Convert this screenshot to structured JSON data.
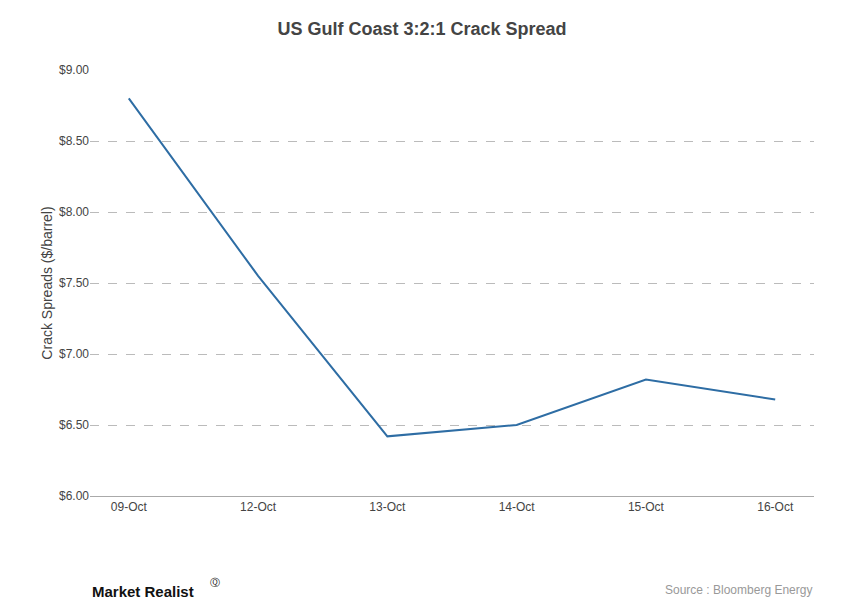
{
  "chart_data": {
    "type": "line",
    "title": "US Gulf Coast 3:2:1 Crack Spread",
    "ylabel": "Crack Spreads ($/barrel)",
    "categories": [
      "09-Oct",
      "12-Oct",
      "13-Oct",
      "14-Oct",
      "15-Oct",
      "16-Oct"
    ],
    "values": [
      8.8,
      7.55,
      6.42,
      6.5,
      6.82,
      6.68
    ],
    "color": "#2E6DA4",
    "ylim": [
      6.0,
      9.0
    ],
    "yticks": [
      {
        "value": 6.0,
        "label": "$6.00"
      },
      {
        "value": 6.5,
        "label": "$6.50"
      },
      {
        "value": 7.0,
        "label": "$7.00"
      },
      {
        "value": 7.5,
        "label": "$7.50"
      },
      {
        "value": 8.0,
        "label": "$8.00"
      },
      {
        "value": 8.5,
        "label": "$8.50"
      },
      {
        "value": 9.0,
        "label": "$9.00"
      }
    ],
    "grid": true,
    "annotations": [
      "Market Realist",
      "Ⓠ",
      "Source : Bloomberg Energy"
    ]
  }
}
